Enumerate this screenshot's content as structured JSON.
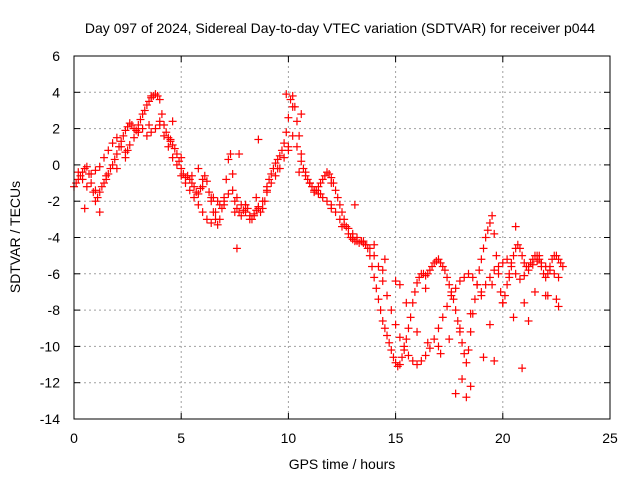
{
  "chart_data": {
    "type": "scatter",
    "title": "Day 097 of 2024, Sidereal Day-to-day VTEC variation (SDTVAR) for receiver p044",
    "xlabel": "GPS time / hours",
    "ylabel": "SDTVAR / TECUs",
    "xlim": [
      0,
      25
    ],
    "ylim": [
      -14,
      6
    ],
    "xticks": [
      0,
      5,
      10,
      15,
      20,
      25
    ],
    "yticks": [
      -14,
      -12,
      -10,
      -8,
      -6,
      -4,
      -2,
      0,
      2,
      4,
      6
    ],
    "grid": true,
    "marker": "+",
    "marker_color": "#ff0000",
    "series": [
      {
        "name": "p044",
        "x": [
          0.0,
          0.1,
          0.2,
          0.3,
          0.4,
          0.5,
          0.6,
          0.7,
          0.8,
          0.9,
          1.0,
          1.1,
          1.2,
          1.3,
          1.4,
          1.5,
          1.6,
          1.7,
          1.8,
          1.9,
          2.0,
          2.1,
          2.2,
          2.3,
          2.4,
          2.5,
          2.6,
          2.7,
          2.8,
          2.9,
          3.0,
          3.1,
          3.2,
          3.3,
          3.4,
          3.5,
          3.6,
          3.7,
          3.8,
          3.9,
          4.0,
          4.1,
          4.2,
          4.3,
          4.4,
          4.5,
          4.6,
          4.7,
          4.8,
          4.9,
          5.0,
          5.1,
          5.2,
          5.3,
          5.4,
          5.5,
          5.6,
          5.7,
          5.8,
          5.9,
          6.0,
          6.1,
          6.2,
          6.3,
          6.4,
          6.5,
          6.6,
          6.7,
          6.8,
          6.9,
          7.0,
          7.1,
          7.2,
          7.3,
          7.4,
          7.5,
          7.6,
          7.7,
          7.8,
          7.9,
          8.0,
          8.1,
          8.2,
          8.3,
          8.4,
          8.5,
          8.6,
          8.7,
          8.8,
          8.9,
          9.0,
          9.1,
          9.2,
          9.3,
          9.4,
          9.5,
          9.6,
          9.7,
          9.8,
          9.9,
          10.0,
          10.1,
          10.2,
          10.3,
          10.4,
          10.5,
          10.6,
          10.7,
          10.8,
          10.9,
          11.0,
          11.1,
          11.2,
          11.3,
          11.4,
          11.5,
          11.6,
          11.7,
          11.8,
          11.9,
          12.0,
          12.1,
          12.2,
          12.3,
          12.4,
          12.5,
          12.6,
          12.7,
          12.8,
          12.9,
          13.0,
          13.1,
          13.2,
          13.3,
          13.4,
          13.5,
          13.6,
          13.7,
          13.8,
          13.9,
          14.0,
          14.1,
          14.2,
          14.3,
          14.4,
          14.5,
          14.6,
          14.7,
          14.8,
          14.9,
          15.0,
          15.1,
          15.2,
          15.3,
          15.4,
          15.5,
          15.6,
          15.7,
          15.8,
          15.9,
          16.0,
          16.1,
          16.2,
          16.3,
          16.4,
          16.5,
          16.6,
          16.7,
          16.8,
          16.9,
          17.0,
          17.1,
          17.2,
          17.3,
          17.4,
          17.5,
          17.6,
          17.7,
          17.8,
          17.9,
          18.0,
          18.1,
          18.2,
          18.3,
          18.4,
          18.5,
          18.6,
          18.7,
          18.8,
          18.9,
          19.0,
          19.1,
          19.2,
          19.3,
          19.4,
          19.5,
          19.6,
          19.7,
          19.8,
          19.9,
          20.0,
          20.1,
          20.2,
          20.3,
          20.4,
          20.5,
          20.6,
          20.7,
          20.8,
          20.9,
          21.0,
          21.1,
          21.2,
          21.3,
          21.4,
          21.5,
          21.6,
          21.7,
          21.8,
          21.9,
          22.0,
          22.1,
          22.2,
          22.3,
          22.4,
          22.5,
          22.6,
          22.7,
          22.8,
          0.2,
          0.4,
          0.6,
          0.8,
          1.0,
          1.2,
          1.4,
          1.6,
          1.8,
          2.0,
          2.2,
          2.4,
          2.6,
          2.8,
          3.0,
          3.2,
          3.4,
          3.6,
          3.8,
          4.0,
          4.2,
          4.4,
          4.6,
          4.8,
          5.0,
          5.2,
          5.4,
          5.6,
          5.8,
          6.0,
          6.2,
          6.4,
          6.6,
          6.8,
          7.0,
          7.2,
          7.4,
          7.6,
          7.8,
          8.0,
          8.2,
          8.4,
          8.6,
          8.8,
          9.0,
          9.2,
          9.4,
          9.6,
          9.8,
          10.0,
          10.2,
          10.4,
          10.6,
          10.8,
          11.0,
          11.2,
          11.4,
          11.6,
          11.8,
          12.0,
          12.2,
          12.4,
          12.6,
          12.8,
          13.0,
          13.2,
          13.4,
          13.6,
          13.8,
          14.0,
          14.2,
          14.4,
          14.6,
          14.8,
          15.0,
          15.2,
          15.4,
          15.6,
          15.8,
          16.0,
          16.2,
          16.4,
          16.6,
          16.8,
          17.0,
          17.2,
          17.4,
          17.6,
          17.8,
          18.0,
          18.2,
          18.4,
          18.6,
          18.8,
          19.0,
          19.2,
          19.4,
          19.6,
          19.8,
          20.0,
          20.2,
          20.4,
          20.6,
          20.8,
          21.0,
          21.2,
          21.4,
          21.6,
          21.8,
          22.0,
          22.2,
          22.4,
          22.6,
          0.5,
          1.0,
          1.5,
          2.0,
          2.5,
          3.0,
          3.5,
          4.0,
          4.5,
          5.0,
          5.5,
          6.0,
          6.5,
          7.0,
          7.5,
          8.0,
          8.5,
          9.0,
          9.5,
          10.0,
          10.5,
          11.0,
          11.5,
          12.0,
          12.5,
          13.0,
          13.5,
          14.0,
          14.5,
          15.0,
          15.5,
          16.0,
          16.5,
          17.0,
          17.5,
          18.0,
          18.5,
          19.0,
          19.5,
          20.0,
          20.5,
          21.0,
          21.5,
          22.0,
          22.5,
          1.2,
          2.4,
          3.6,
          4.6,
          5.8,
          6.4,
          6.7,
          7.6,
          7.7,
          8.6,
          9.9,
          10.2,
          10.6,
          12.0,
          13.1,
          14.4,
          15.2,
          16.4,
          17.1,
          17.8,
          18.1,
          18.3,
          18.5,
          19.1,
          19.4,
          19.6,
          20.3,
          20.6,
          20.9,
          21.2,
          21.7,
          22.1,
          22.6
        ],
        "y": [
          -1.2,
          -1.0,
          -0.8,
          -0.6,
          -0.4,
          -0.2,
          -0.1,
          -0.5,
          -1.0,
          -1.5,
          -2.0,
          -1.8,
          -1.5,
          -1.2,
          -1.0,
          -0.8,
          -0.5,
          -0.2,
          0.0,
          0.3,
          0.6,
          1.0,
          1.3,
          1.6,
          1.9,
          2.1,
          2.3,
          2.2,
          2.0,
          1.9,
          2.2,
          2.5,
          2.8,
          3.0,
          3.3,
          3.5,
          3.7,
          3.8,
          3.9,
          3.8,
          3.6,
          2.8,
          2.2,
          1.8,
          1.5,
          1.3,
          1.1,
          0.9,
          0.6,
          0.2,
          -0.2,
          -0.5,
          -0.7,
          -0.6,
          -0.8,
          -1.0,
          -1.2,
          -1.5,
          -1.6,
          -1.3,
          -0.8,
          -0.6,
          -0.9,
          -1.5,
          -2.0,
          -2.6,
          -3.0,
          -3.3,
          -3.0,
          -2.4,
          -1.8,
          -0.8,
          0.3,
          0.6,
          -0.5,
          -2.0,
          -2.4,
          -2.6,
          -2.8,
          -2.5,
          -2.2,
          -2.4,
          -2.8,
          -3.0,
          -2.7,
          -2.5,
          -2.3,
          -2.6,
          -2.4,
          -2.0,
          -1.5,
          -0.8,
          -0.5,
          -0.2,
          0.1,
          0.3,
          0.5,
          0.8,
          1.2,
          1.8,
          2.6,
          3.6,
          3.8,
          3.2,
          2.4,
          1.6,
          0.6,
          -0.2,
          -0.6,
          -0.8,
          -1.0,
          -1.2,
          -1.5,
          -1.4,
          -1.2,
          -1.0,
          -0.8,
          -0.6,
          -0.4,
          -0.5,
          -0.7,
          -1.0,
          -1.4,
          -1.8,
          -2.2,
          -2.6,
          -3.0,
          -3.4,
          -3.8,
          -4.0,
          -4.1,
          -4.2,
          -4.2,
          -4.3,
          -4.2,
          -4.3,
          -4.4,
          -4.6,
          -5.0,
          -5.6,
          -6.2,
          -6.8,
          -7.4,
          -8.0,
          -8.6,
          -9.0,
          -9.4,
          -9.8,
          -10.2,
          -10.6,
          -10.9,
          -11.1,
          -11.0,
          -10.6,
          -10.2,
          -9.6,
          -9.0,
          -8.4,
          -7.6,
          -7.0,
          -6.5,
          -6.2,
          -6.0,
          -6.0,
          -6.1,
          -6.0,
          -5.8,
          -5.6,
          -5.4,
          -5.3,
          -5.2,
          -5.4,
          -5.6,
          -5.8,
          -6.2,
          -6.6,
          -7.0,
          -7.4,
          -8.0,
          -8.6,
          -9.2,
          -9.8,
          -10.4,
          -10.9,
          -10.2,
          -9.2,
          -8.2,
          -7.4,
          -6.6,
          -5.8,
          -5.2,
          -4.6,
          -4.0,
          -3.6,
          -3.2,
          -2.8,
          -3.8,
          -5.0,
          -6.0,
          -7.0,
          -7.6,
          -7.2,
          -6.6,
          -6.0,
          -5.4,
          -5.0,
          -4.6,
          -4.4,
          -4.6,
          -5.0,
          -5.4,
          -5.6,
          -5.6,
          -5.4,
          -5.2,
          -5.0,
          -5.0,
          -5.2,
          -5.6,
          -6.0,
          -6.2,
          -6.0,
          -5.6,
          -5.2,
          -5.0,
          -5.0,
          -5.2,
          -5.4,
          -5.6,
          -0.4,
          -0.8,
          -1.2,
          -0.5,
          -0.3,
          -0.1,
          0.4,
          0.8,
          1.2,
          1.5,
          1.0,
          0.7,
          1.1,
          1.5,
          1.8,
          2.0,
          1.6,
          1.8,
          2.0,
          2.2,
          1.6,
          1.0,
          0.4,
          0.0,
          -0.6,
          -1.0,
          -1.4,
          -1.8,
          -2.2,
          -2.6,
          -3.0,
          -3.2,
          -2.6,
          -2.2,
          -2.0,
          -1.6,
          -1.4,
          -1.8,
          -2.2,
          -2.6,
          -3.0,
          -2.8,
          -2.4,
          -2.0,
          -1.4,
          -1.0,
          -0.6,
          -0.2,
          0.4,
          1.0,
          1.6,
          1.0,
          0.2,
          -0.4,
          -1.0,
          -1.4,
          -1.6,
          -1.8,
          -2.0,
          -2.2,
          -2.6,
          -3.0,
          -3.3,
          -3.5,
          -3.8,
          -4.0,
          -4.2,
          -4.4,
          -4.6,
          -5.0,
          -5.6,
          -6.4,
          -7.2,
          -8.0,
          -8.8,
          -9.5,
          -10.0,
          -10.5,
          -10.8,
          -11.0,
          -10.8,
          -10.5,
          -10.1,
          -9.6,
          -9.0,
          -8.4,
          -7.8,
          -7.2,
          -6.8,
          -6.4,
          -6.2,
          -6.0,
          -6.2,
          -6.6,
          -7.0,
          -6.6,
          -6.2,
          -5.8,
          -5.6,
          -5.4,
          -5.2,
          -5.6,
          -6.0,
          -6.3,
          -6.1,
          -5.8,
          -5.5,
          -5.3,
          -5.4,
          -5.6,
          -5.8,
          -6.0,
          -6.2,
          -2.4,
          -1.4,
          -0.6,
          -0.2,
          0.8,
          1.8,
          2.2,
          2.4,
          1.4,
          0.4,
          -0.6,
          -1.2,
          -1.8,
          -2.2,
          -2.6,
          -2.2,
          -1.8,
          -1.2,
          -0.2,
          0.8,
          -0.4,
          -1.0,
          -1.6,
          -2.4,
          -3.4,
          -4.0,
          -4.2,
          -4.4,
          -5.2,
          -6.4,
          -7.6,
          -9.2,
          -9.8,
          -10.0,
          -9.6,
          -9.0,
          -8.2,
          -7.2,
          -6.6,
          -7.6,
          -8.4,
          -7.6,
          -7.0,
          -7.2,
          -7.4,
          -2.6,
          0.4,
          3.8,
          2.4,
          -0.2,
          -1.8,
          -2.0,
          -4.6,
          0.6,
          1.4,
          3.9,
          3.2,
          2.8,
          -1.0,
          -2.2,
          -5.8,
          -6.6,
          -6.8,
          -10.4,
          -12.6,
          -11.8,
          -12.8,
          -12.2,
          -10.6,
          -8.8,
          -10.8,
          -6.2,
          -3.4,
          -11.2,
          -8.6,
          -5.0,
          -7.2,
          -7.8
        ]
      }
    ]
  }
}
